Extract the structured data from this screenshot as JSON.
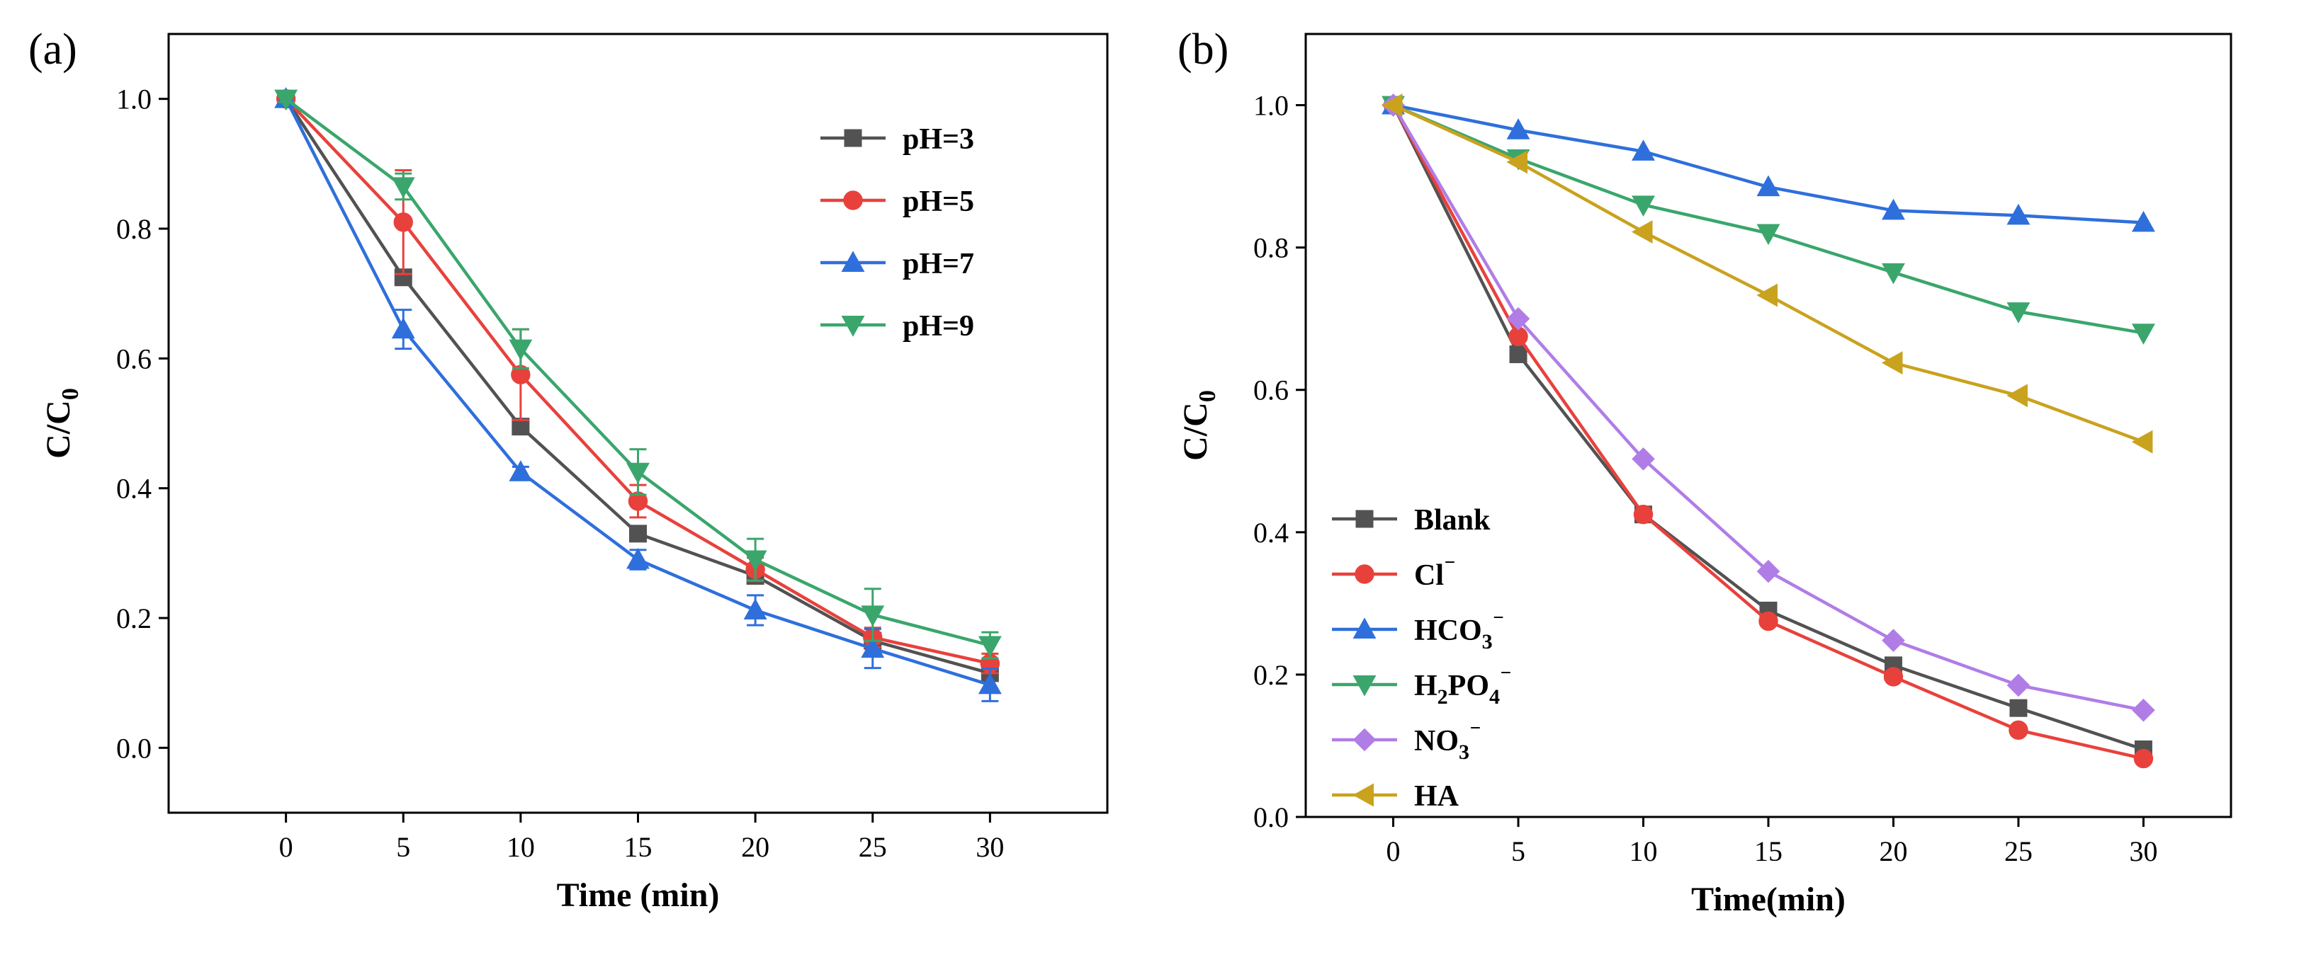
{
  "chart_data": [
    {
      "panel_label": "(a)",
      "type": "line",
      "xlabel": "Time (min)",
      "ylabel": {
        "main": "C/C",
        "sub": "0"
      },
      "xlim": [
        -5,
        35
      ],
      "ylim": [
        -0.1,
        1.1
      ],
      "xticks": [
        0,
        5,
        10,
        15,
        20,
        25,
        30
      ],
      "xtick_labels": [
        "0",
        "5",
        "10",
        "15",
        "20",
        "25",
        "30"
      ],
      "yticks": [
        0.0,
        0.2,
        0.4,
        0.6,
        0.8,
        1.0
      ],
      "ytick_labels": [
        "0.0",
        "0.2",
        "0.4",
        "0.6",
        "0.8",
        "1.0"
      ],
      "legend_position": "top-right",
      "x": [
        0,
        5,
        10,
        15,
        20,
        25,
        30
      ],
      "series": [
        {
          "name": "pH=3",
          "marker": "square",
          "color": "#525252",
          "values": [
            1.0,
            0.725,
            0.495,
            0.33,
            0.265,
            0.165,
            0.115
          ],
          "errors": [
            0.005,
            0.01,
            0.01,
            0.01,
            0.012,
            0.012,
            0.01
          ]
        },
        {
          "name": "pH=5",
          "marker": "circle",
          "color": "#e8413c",
          "values": [
            1.0,
            0.81,
            0.575,
            0.38,
            0.275,
            0.17,
            0.13
          ],
          "errors": [
            0.005,
            0.08,
            0.07,
            0.025,
            0.018,
            0.015,
            0.015
          ]
        },
        {
          "name": "pH=7",
          "marker": "triangle-up",
          "color": "#2f6fdc",
          "values": [
            1.0,
            0.645,
            0.425,
            0.29,
            0.212,
            0.153,
            0.097
          ],
          "errors": [
            0.005,
            0.03,
            0.008,
            0.015,
            0.023,
            0.03,
            0.025
          ]
        },
        {
          "name": "pH=9",
          "marker": "triangle-down",
          "color": "#3aa66c",
          "values": [
            1.0,
            0.865,
            0.615,
            0.425,
            0.29,
            0.205,
            0.158
          ],
          "errors": [
            0.005,
            0.02,
            0.03,
            0.035,
            0.032,
            0.04,
            0.02
          ]
        }
      ]
    },
    {
      "panel_label": "(b)",
      "type": "line",
      "xlabel": "Time(min)",
      "ylabel": {
        "main": "C/C",
        "sub": "0"
      },
      "xlim": [
        -3.5,
        33.5
      ],
      "ylim": [
        0.0,
        1.1
      ],
      "xticks": [
        0,
        5,
        10,
        15,
        20,
        25,
        30
      ],
      "xtick_labels": [
        "0",
        "5",
        "10",
        "15",
        "20",
        "25",
        "30"
      ],
      "yticks": [
        0.0,
        0.2,
        0.4,
        0.6,
        0.8,
        1.0
      ],
      "ytick_labels": [
        "0.0",
        "0.2",
        "0.4",
        "0.6",
        "0.8",
        "1.0"
      ],
      "legend_position": "bottom-left",
      "x": [
        0,
        5,
        10,
        15,
        20,
        25,
        30
      ],
      "series": [
        {
          "name": "Blank",
          "label_parts": [
            [
              "Blank",
              ""
            ]
          ],
          "marker": "square",
          "color": "#525252",
          "values": [
            1.0,
            0.65,
            0.425,
            0.29,
            0.213,
            0.153,
            0.095
          ]
        },
        {
          "name": "Cl⁻",
          "label_parts": [
            [
              "Cl",
              ""
            ],
            [
              "⁻",
              "sup"
            ]
          ],
          "marker": "circle",
          "color": "#e8413c",
          "values": [
            1.0,
            0.675,
            0.425,
            0.275,
            0.197,
            0.122,
            0.082
          ]
        },
        {
          "name": "HCO3⁻",
          "label_parts": [
            [
              "HCO",
              ""
            ],
            [
              "3",
              "sub"
            ],
            [
              "⁻",
              "sup"
            ]
          ],
          "marker": "triangle-up",
          "color": "#2f6fdc",
          "values": [
            1.0,
            0.965,
            0.935,
            0.885,
            0.852,
            0.845,
            0.835
          ]
        },
        {
          "name": "H2PO4⁻",
          "label_parts": [
            [
              "H",
              ""
            ],
            [
              "2",
              "sub"
            ],
            [
              "PO",
              ""
            ],
            [
              "4",
              "sub"
            ],
            [
              "⁻",
              "sup"
            ]
          ],
          "marker": "triangle-down",
          "color": "#3aa66c",
          "values": [
            1.0,
            0.925,
            0.86,
            0.82,
            0.765,
            0.71,
            0.68
          ]
        },
        {
          "name": "NO3⁻",
          "label_parts": [
            [
              "NO",
              ""
            ],
            [
              "3",
              "sub"
            ],
            [
              "⁻",
              "sup"
            ]
          ],
          "marker": "diamond",
          "color": "#b07de6",
          "values": [
            1.0,
            0.7,
            0.503,
            0.345,
            0.248,
            0.185,
            0.15
          ]
        },
        {
          "name": "HA",
          "label_parts": [
            [
              "HA",
              ""
            ]
          ],
          "marker": "triangle-left",
          "color": "#c9a21e",
          "values": [
            1.0,
            0.92,
            0.822,
            0.733,
            0.638,
            0.592,
            0.527
          ]
        }
      ]
    }
  ]
}
